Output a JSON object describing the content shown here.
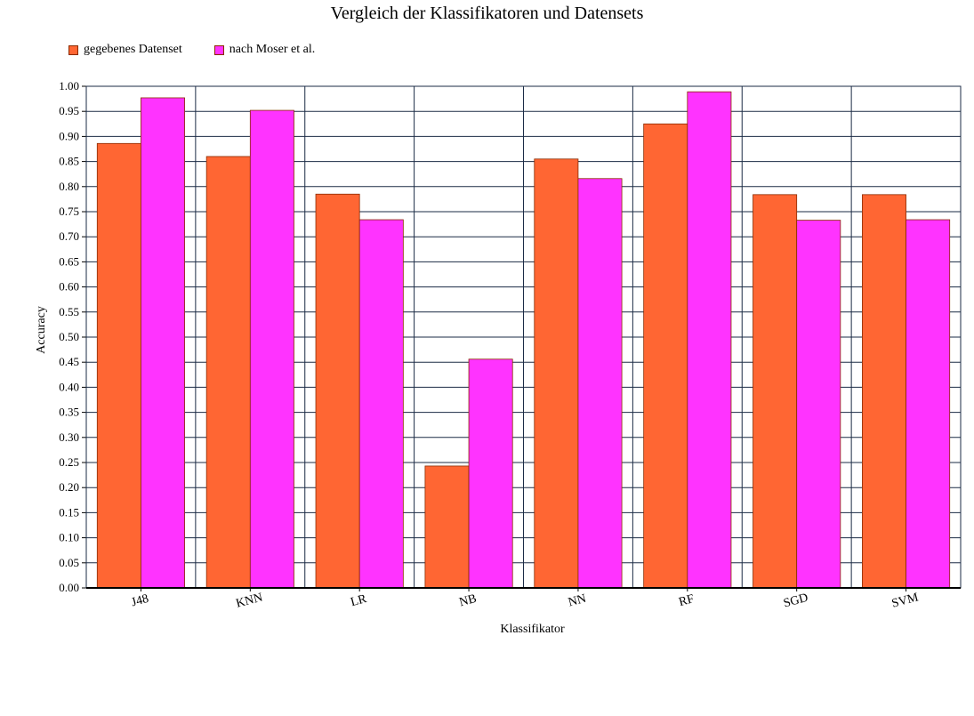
{
  "chart_data": {
    "type": "bar",
    "title": "Vergleich der Klassifikatoren und Datensets",
    "xlabel": "Klassifikator",
    "ylabel": "Accuracy",
    "ylim": [
      0,
      1.0
    ],
    "ytick_step": 0.05,
    "grid": true,
    "legend_position": "top-left",
    "categories": [
      "J48",
      "KNN",
      "LR",
      "NB",
      "NN",
      "RF",
      "SGD",
      "SVM"
    ],
    "series": [
      {
        "name": "gegebenes Datenset",
        "color": "#ff6633",
        "values": [
          0.886,
          0.86,
          0.785,
          0.243,
          0.855,
          0.925,
          0.784,
          0.784
        ]
      },
      {
        "name": "nach Moser et al.",
        "color": "#ff33ff",
        "values": [
          0.977,
          0.952,
          0.734,
          0.456,
          0.816,
          0.989,
          0.733,
          0.734
        ]
      }
    ]
  }
}
